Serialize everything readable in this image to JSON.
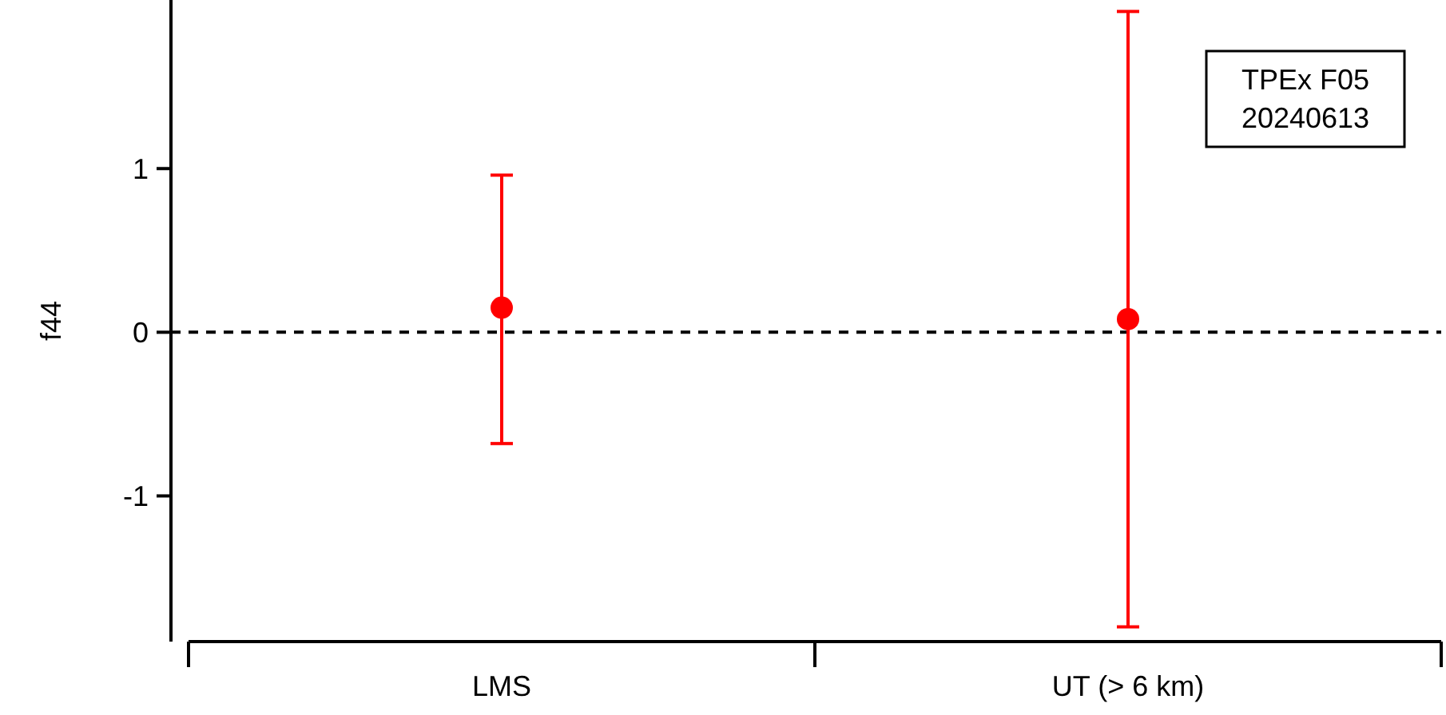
{
  "chart_data": {
    "type": "scatter",
    "ylabel": "f44",
    "categories": [
      "LMS",
      "UT (> 6 km)"
    ],
    "series": [
      {
        "color": "#ff0000",
        "values": [
          0.15,
          0.08
        ],
        "errors": [
          [
            -0.68,
            0.96
          ],
          [
            -1.8,
            1.96
          ]
        ]
      }
    ],
    "ylim": [
      -1.89,
      2.03
    ],
    "yticks": [
      -1,
      0,
      1
    ],
    "marker": "circle",
    "grid": false,
    "ref_lines": [
      {
        "axis": "y",
        "value": 0,
        "color": "#000000",
        "line_style": "dashed"
      }
    ],
    "annotations": [
      "TPEx F05\n20240613"
    ]
  }
}
